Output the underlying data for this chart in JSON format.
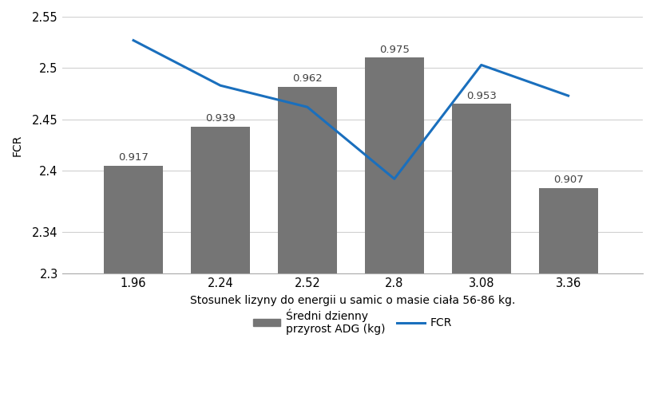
{
  "x_labels": [
    "1.96",
    "2.24",
    "2.52",
    "2.8",
    "3.08",
    "3.36"
  ],
  "x_values": [
    1.96,
    2.24,
    2.52,
    2.8,
    3.08,
    3.36
  ],
  "adg_values": [
    0.917,
    0.939,
    0.962,
    0.975,
    0.953,
    0.907
  ],
  "bar_tops": [
    2.405,
    2.443,
    2.482,
    2.51,
    2.465,
    2.383
  ],
  "fcr_values": [
    2.527,
    2.483,
    2.462,
    2.392,
    2.503,
    2.473
  ],
  "bar_color": "#757575",
  "line_color": "#1a6fbd",
  "bar_width": 0.19,
  "ylim_min": 2.3,
  "ylim_max": 2.55,
  "yticks": [
    2.3,
    2.34,
    2.4,
    2.45,
    2.5,
    2.55
  ],
  "xlabel": "Stosunek lizyny do energii u samic o masie ciała 56-86 kg.",
  "ylabel": "FCR",
  "legend_bar_label": "Średni dzienny\nprzyrost ADG (kg)",
  "legend_line_label": "FCR",
  "background_color": "#ffffff",
  "label_fontsize": 10,
  "tick_fontsize": 10.5,
  "annotation_fontsize": 9.5,
  "annotation_color": "#404040",
  "grid_color": "#d0d0d0",
  "spine_color": "#aaaaaa"
}
